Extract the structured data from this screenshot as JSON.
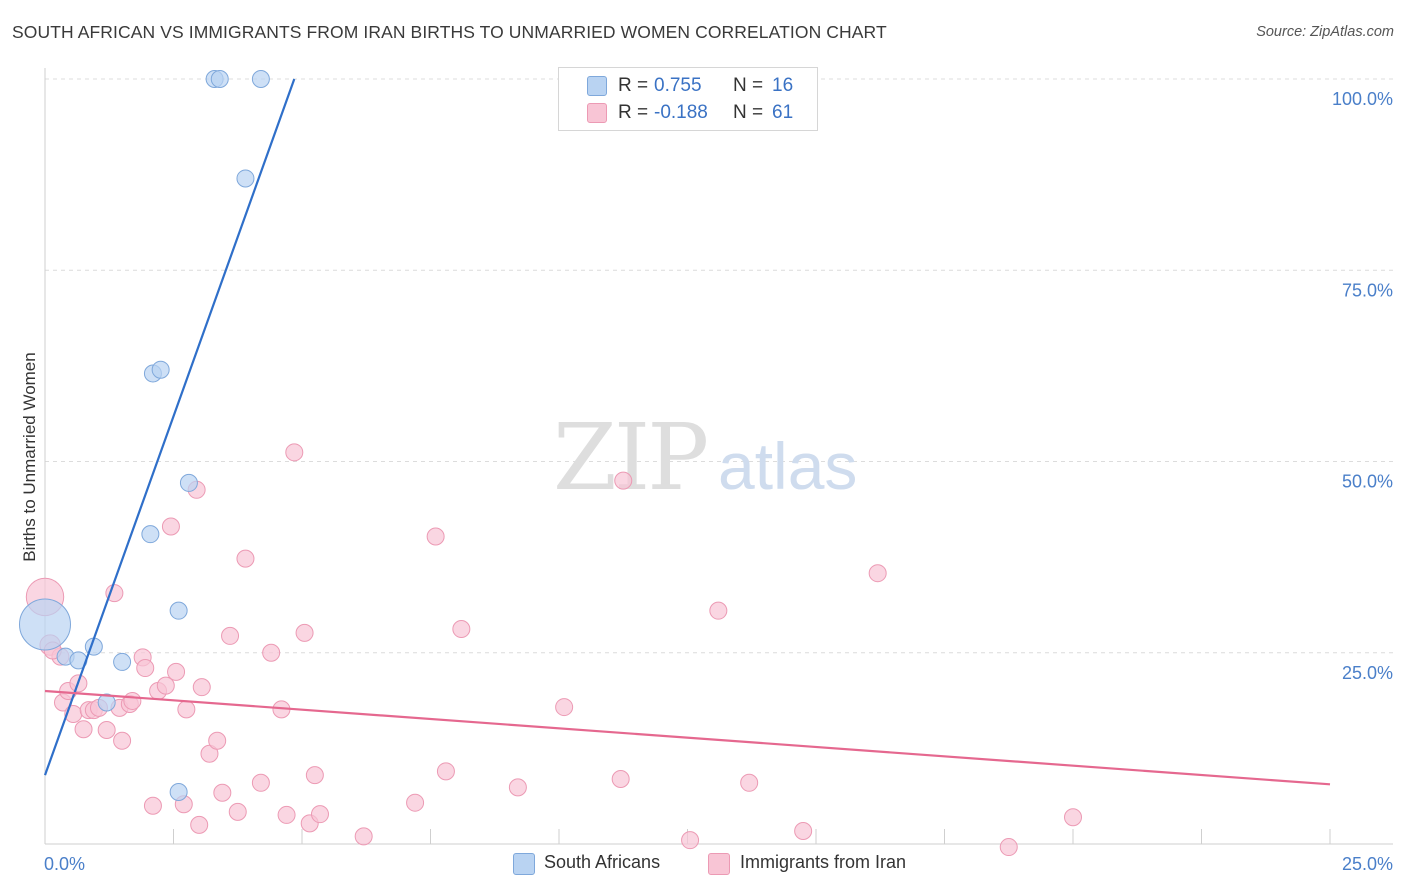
{
  "header": {
    "title": "SOUTH AFRICAN VS IMMIGRANTS FROM IRAN BIRTHS TO UNMARRIED WOMEN CORRELATION CHART",
    "source": "Source: ZipAtlas.com"
  },
  "watermark": {
    "zip": "ZIP",
    "atlas": "atlas"
  },
  "legend": {
    "r_label": "R =",
    "n_label": "N =",
    "series": [
      {
        "name": "South Africans",
        "r": "0.755",
        "n": "16"
      },
      {
        "name": "Immigrants from Iran",
        "r": "-0.188",
        "n": "61"
      }
    ]
  },
  "colors": {
    "blue_fill": "#b9d3f2",
    "blue_stroke": "#7fa8db",
    "blue_line": "#2f6fc9",
    "pink_fill": "#f8c5d5",
    "pink_stroke": "#ec9ab4",
    "pink_line": "#e5688f",
    "axis_text": "#4a7fc9",
    "grid": "#dcdcdc"
  },
  "chart_data": {
    "type": "scatter",
    "title": "SOUTH AFRICAN VS IMMIGRANTS FROM IRAN BIRTHS TO UNMARRIED WOMEN CORRELATION CHART",
    "xlabel": "",
    "ylabel": "Births to Unmarried Women",
    "xlim": [
      0,
      25
    ],
    "ylim": [
      0,
      100
    ],
    "x_tick_labels": [
      "0.0%",
      "25.0%"
    ],
    "y_ticks": [
      25,
      50,
      75,
      100
    ],
    "y_tick_labels": [
      "25.0%",
      "50.0%",
      "75.0%",
      "100.0%"
    ],
    "grid": true,
    "legend_position": "top-center",
    "series": [
      {
        "name": "South Africans",
        "color": "blue",
        "points": [
          [
            0.0,
            28.7,
            3
          ],
          [
            0.4,
            24.5,
            1
          ],
          [
            0.65,
            24.0,
            1
          ],
          [
            0.95,
            25.8,
            1
          ],
          [
            1.2,
            18.5,
            1
          ],
          [
            1.5,
            23.8,
            1
          ],
          [
            2.05,
            40.5,
            1
          ],
          [
            2.1,
            61.5,
            1
          ],
          [
            2.25,
            62.0,
            1
          ],
          [
            2.6,
            30.5,
            1
          ],
          [
            2.6,
            6.8,
            1
          ],
          [
            2.8,
            47.2,
            1
          ],
          [
            3.3,
            100.0,
            1
          ],
          [
            3.4,
            100.0,
            1
          ],
          [
            3.9,
            87.0,
            1
          ],
          [
            4.2,
            100.0,
            1
          ]
        ],
        "trend": {
          "x0": 0.0,
          "y0": 9.0,
          "x1": 4.85,
          "y1": 100.0
        }
      },
      {
        "name": "Immigrants from Iran",
        "color": "pink",
        "points": [
          [
            0.0,
            32.3,
            2.2
          ],
          [
            0.1,
            26.0,
            1.2
          ],
          [
            0.3,
            24.5,
            1
          ],
          [
            0.35,
            18.5,
            1
          ],
          [
            0.45,
            20.0,
            1
          ],
          [
            0.55,
            17.0,
            1
          ],
          [
            0.65,
            21.0,
            1
          ],
          [
            0.75,
            15.0,
            1
          ],
          [
            0.85,
            17.5,
            1
          ],
          [
            0.95,
            17.5,
            1
          ],
          [
            1.05,
            17.8,
            1
          ],
          [
            1.2,
            14.9,
            1
          ],
          [
            1.35,
            32.8,
            1
          ],
          [
            1.45,
            17.8,
            1
          ],
          [
            1.5,
            13.5,
            1
          ],
          [
            1.65,
            18.3,
            1
          ],
          [
            1.7,
            18.7,
            1
          ],
          [
            1.9,
            24.4,
            1
          ],
          [
            1.95,
            23.0,
            1
          ],
          [
            2.1,
            5.0,
            1
          ],
          [
            2.2,
            20.0,
            1
          ],
          [
            2.35,
            20.7,
            1
          ],
          [
            2.45,
            41.5,
            1
          ],
          [
            2.55,
            22.5,
            1
          ],
          [
            2.7,
            5.2,
            1
          ],
          [
            2.75,
            17.6,
            1
          ],
          [
            2.95,
            46.3,
            1
          ],
          [
            3.0,
            2.5,
            1
          ],
          [
            3.05,
            20.5,
            1
          ],
          [
            3.2,
            11.8,
            1
          ],
          [
            3.35,
            13.5,
            1
          ],
          [
            3.45,
            6.7,
            1
          ],
          [
            3.6,
            27.2,
            1
          ],
          [
            3.75,
            4.2,
            1
          ],
          [
            3.9,
            37.3,
            1
          ],
          [
            4.2,
            8.0,
            1
          ],
          [
            4.4,
            25.0,
            1
          ],
          [
            4.6,
            17.6,
            1
          ],
          [
            4.7,
            3.8,
            1
          ],
          [
            4.85,
            51.2,
            1
          ],
          [
            5.05,
            27.6,
            1
          ],
          [
            5.15,
            2.7,
            1
          ],
          [
            5.25,
            9.0,
            1
          ],
          [
            5.35,
            3.9,
            1
          ],
          [
            6.2,
            1.0,
            1
          ],
          [
            7.2,
            5.4,
            1
          ],
          [
            7.6,
            40.2,
            1
          ],
          [
            7.8,
            9.5,
            1
          ],
          [
            8.1,
            28.1,
            1
          ],
          [
            9.2,
            7.4,
            1
          ],
          [
            10.1,
            17.9,
            1
          ],
          [
            11.2,
            8.5,
            1
          ],
          [
            11.25,
            47.5,
            1
          ],
          [
            12.55,
            0.5,
            1
          ],
          [
            13.1,
            30.5,
            1
          ],
          [
            13.7,
            8.0,
            1
          ],
          [
            14.75,
            1.7,
            1
          ],
          [
            16.2,
            35.4,
            1
          ],
          [
            18.75,
            -0.4,
            1
          ],
          [
            20.0,
            3.5,
            1
          ],
          [
            0.15,
            25.3,
            1
          ]
        ],
        "trend": {
          "x0": 0.0,
          "y0": 20.0,
          "x1": 25.0,
          "y1": 7.8
        }
      }
    ]
  }
}
